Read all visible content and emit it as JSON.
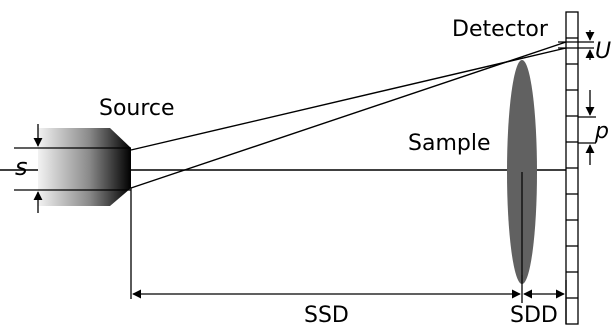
{
  "labels": {
    "detector": "Detector",
    "source": "Source",
    "sample": "Sample",
    "s": "s",
    "U": "U",
    "p": "p",
    "ssd": "SSD",
    "sdd": "SDD"
  },
  "colors": {
    "stroke": "#000000",
    "sample_fill": "#616161",
    "source_light": "#f2f2f2",
    "source_dark": "#000000"
  }
}
